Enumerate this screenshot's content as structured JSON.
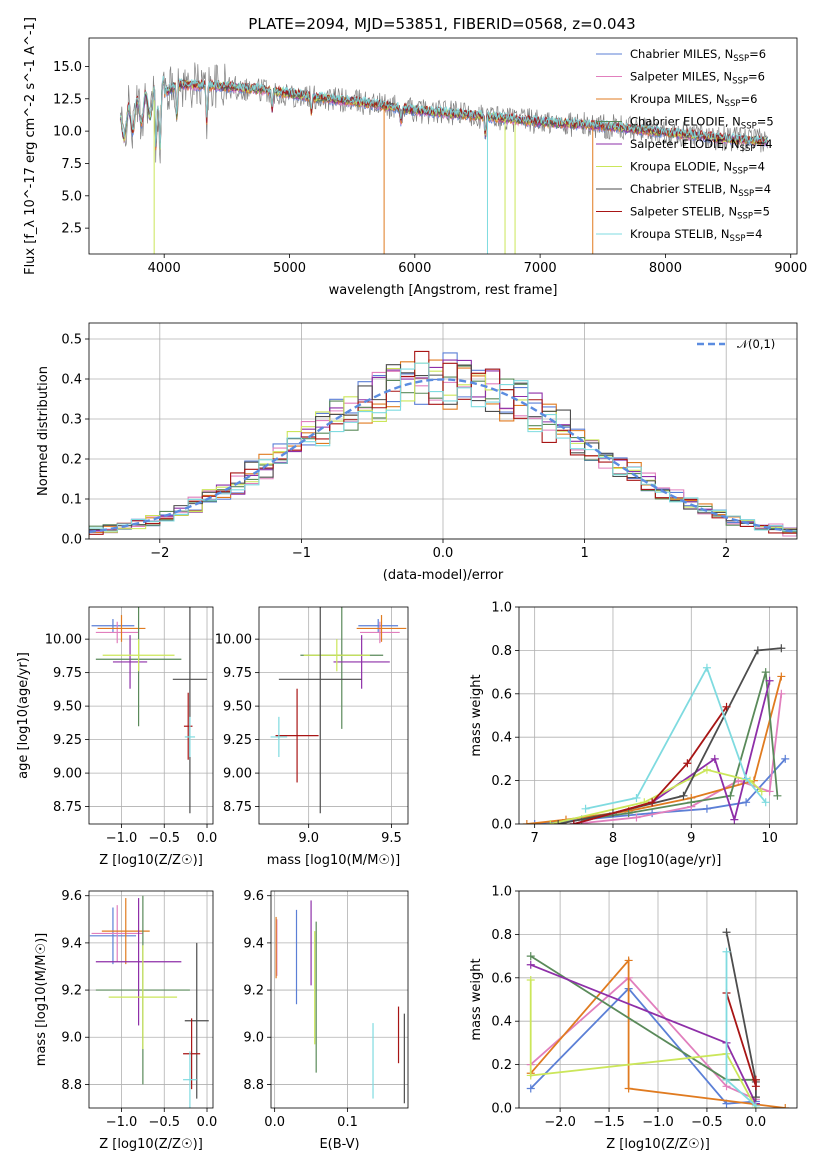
{
  "figure_title": "PLATE=2094, MJD=53851, FIBERID=0568, z=0.043",
  "colors": [
    "#5b7fd6",
    "#e17fbd",
    "#e07b20",
    "#5a8a5a",
    "#8e2fa8",
    "#cbe65a",
    "#4d4d4d",
    "#a81515",
    "#7fdbe0"
  ],
  "chart_data": [
    {
      "id": "spectrum",
      "type": "line",
      "title": "PLATE=2094, MJD=53851, FIBERID=0568, z=0.043",
      "xlabel": "wavelength [Angstrom, rest frame]",
      "ylabel": "Flux [f_λ 10^-17 erg cm^-2 s^-1 A^-1]",
      "xlim": [
        3400,
        9050
      ],
      "ylim": [
        0.5,
        17.2
      ],
      "xticks": [
        4000,
        5000,
        6000,
        7000,
        8000,
        9000
      ],
      "yticks": [
        2.5,
        5.0,
        7.5,
        10.0,
        12.5,
        15.0
      ],
      "grid": false,
      "legend_position": "top-right",
      "series": [
        {
          "name": "Chabrier MILES, N_SSP=6"
        },
        {
          "name": "Salpeter MILES, N_SSP=6"
        },
        {
          "name": "Kroupa MILES, N_SSP=6"
        },
        {
          "name": "Chabrier ELODIE, N_SSP=5"
        },
        {
          "name": "Salpeter ELODIE, N_SSP=4"
        },
        {
          "name": "Kroupa ELODIE, N_SSP=4"
        },
        {
          "name": "Chabrier STELIB, N_SSP=4"
        },
        {
          "name": "Salpeter STELIB, N_SSP=5"
        },
        {
          "name": "Kroupa STELIB, N_SSP=4"
        }
      ],
      "continuum": [
        [
          3650,
          10.2
        ],
        [
          3800,
          11.5
        ],
        [
          3950,
          12.6
        ],
        [
          4100,
          13.6
        ],
        [
          4400,
          13.5
        ],
        [
          4800,
          13.2
        ],
        [
          5200,
          12.6
        ],
        [
          5600,
          12.2
        ],
        [
          6000,
          11.6
        ],
        [
          6500,
          11.2
        ],
        [
          7000,
          10.7
        ],
        [
          7500,
          10.4
        ],
        [
          8000,
          9.9
        ],
        [
          8500,
          9.4
        ],
        [
          8800,
          9.2
        ]
      ],
      "observed_color": "#808080"
    },
    {
      "id": "residuals",
      "type": "histogram",
      "xlabel": "(data-model)/error",
      "ylabel": "Normed distribution",
      "xlim": [
        -2.5,
        2.5
      ],
      "ylim": [
        0,
        0.54
      ],
      "xticks": [
        -2,
        -1,
        0,
        1,
        2
      ],
      "yticks": [
        0.0,
        0.1,
        0.2,
        0.3,
        0.4,
        0.5
      ],
      "grid": true,
      "legend": "𝒩(0,1)",
      "legend_position": "top-right",
      "bin_width": 0.1
    },
    {
      "id": "age_vs_Z",
      "type": "errorbar",
      "xlabel": "Z [log10(Z/Z☉)]",
      "ylabel": "age  [log10(age/yr)]",
      "xlim": [
        -1.38,
        0.07
      ],
      "ylim": [
        8.62,
        10.24
      ],
      "xticks": [
        -1.0,
        -0.5,
        0.0
      ],
      "yticks": [
        8.75,
        9.0,
        9.25,
        9.5,
        9.75,
        10.0
      ],
      "grid": true,
      "points": [
        {
          "x": -1.1,
          "y": 10.1,
          "xerr": 0.25,
          "yerr": 0.05
        },
        {
          "x": -1.05,
          "y": 10.05,
          "xerr": 0.25,
          "yerr": 0.08
        },
        {
          "x": -1.0,
          "y": 10.08,
          "xerr": 0.28,
          "yerr": 0.1
        },
        {
          "x": -0.8,
          "y": 9.85,
          "xerr": 0.5,
          "yerr": 0.5
        },
        {
          "x": -0.9,
          "y": 9.83,
          "xerr": 0.2,
          "yerr": 0.2
        },
        {
          "x": -0.8,
          "y": 9.88,
          "xerr": 0.42,
          "yerr": 0.12
        },
        {
          "x": -0.2,
          "y": 9.7,
          "xerr": 0.2,
          "yerr": 1.0
        },
        {
          "x": -0.22,
          "y": 9.35,
          "xerr": 0.05,
          "yerr": 0.25
        },
        {
          "x": -0.2,
          "y": 9.27,
          "xerr": 0.06,
          "yerr": 0.15
        }
      ]
    },
    {
      "id": "age_vs_mass",
      "type": "errorbar",
      "xlabel": "mass [log10(M/M☉)]",
      "ylabel": "",
      "xlim": [
        8.7,
        9.6
      ],
      "ylim": [
        8.62,
        10.24
      ],
      "xticks": [
        9.0,
        9.5
      ],
      "yticks": [
        8.75,
        9.0,
        9.25,
        9.5,
        9.75,
        10.0
      ],
      "grid": true,
      "points": [
        {
          "x": 9.42,
          "y": 10.1,
          "xerr": 0.12,
          "yerr": 0.05
        },
        {
          "x": 9.43,
          "y": 10.05,
          "xerr": 0.12,
          "yerr": 0.08
        },
        {
          "x": 9.44,
          "y": 10.08,
          "xerr": 0.15,
          "yerr": 0.1
        },
        {
          "x": 9.2,
          "y": 9.88,
          "xerr": 0.25,
          "yerr": 0.55
        },
        {
          "x": 9.32,
          "y": 9.83,
          "xerr": 0.17,
          "yerr": 0.2
        },
        {
          "x": 9.17,
          "y": 9.88,
          "xerr": 0.2,
          "yerr": 0.12
        },
        {
          "x": 9.07,
          "y": 9.7,
          "xerr": 0.25,
          "yerr": 1.0
        },
        {
          "x": 8.93,
          "y": 9.28,
          "xerr": 0.13,
          "yerr": 0.35
        },
        {
          "x": 8.82,
          "y": 9.27,
          "xerr": 0.05,
          "yerr": 0.15
        }
      ]
    },
    {
      "id": "weight_vs_age",
      "type": "line",
      "xlabel": "age  [log10(age/yr)]",
      "ylabel": "mass weight",
      "xlim": [
        6.8,
        10.35
      ],
      "ylim": [
        0.0,
        1.0
      ],
      "xticks": [
        7,
        8,
        9,
        10
      ],
      "yticks": [
        0.0,
        0.2,
        0.4,
        0.6,
        0.8,
        1.0
      ],
      "grid": true,
      "series": [
        {
          "x": [
            7.0,
            7.6,
            8.5,
            9.2,
            9.7,
            10.2
          ],
          "y": [
            0.0,
            0.02,
            0.05,
            0.07,
            0.1,
            0.3
          ]
        },
        {
          "x": [
            7.5,
            8.3,
            9.0,
            9.6,
            10.0,
            10.15
          ],
          "y": [
            0.0,
            0.03,
            0.08,
            0.2,
            0.15,
            0.6
          ]
        },
        {
          "x": [
            6.9,
            7.4,
            8.2,
            9.0,
            9.8,
            10.15
          ],
          "y": [
            0.0,
            0.02,
            0.06,
            0.12,
            0.2,
            0.68
          ]
        },
        {
          "x": [
            7.6,
            8.2,
            9.0,
            9.5,
            9.95,
            10.1
          ],
          "y": [
            0.02,
            0.05,
            0.1,
            0.13,
            0.7,
            0.13
          ]
        },
        {
          "x": [
            7.5,
            8.5,
            9.3,
            9.55,
            10.0
          ],
          "y": [
            0.0,
            0.1,
            0.3,
            0.02,
            0.66
          ]
        },
        {
          "x": [
            7.2,
            8.4,
            9.2,
            9.75,
            9.9
          ],
          "y": [
            0.0,
            0.1,
            0.25,
            0.2,
            0.15
          ]
        },
        {
          "x": [
            7.3,
            8.0,
            8.9,
            9.85,
            10.15
          ],
          "y": [
            0.0,
            0.05,
            0.13,
            0.8,
            0.81
          ]
        },
        {
          "x": [
            7.5,
            8.5,
            8.95,
            9.45
          ],
          "y": [
            0.0,
            0.1,
            0.28,
            0.54
          ]
        },
        {
          "x": [
            7.65,
            8.3,
            9.2,
            9.7,
            9.95
          ],
          "y": [
            0.07,
            0.12,
            0.72,
            0.21,
            0.1
          ]
        }
      ]
    },
    {
      "id": "mass_vs_Z",
      "type": "errorbar",
      "xlabel": "Z [log10(Z/Z☉)]",
      "ylabel": "mass [log10(M/M☉)]",
      "xlim": [
        -1.38,
        0.07
      ],
      "ylim": [
        8.7,
        9.62
      ],
      "xticks": [
        -1.0,
        -0.5,
        0.0
      ],
      "yticks": [
        8.8,
        9.0,
        9.2,
        9.4,
        9.6
      ],
      "grid": true,
      "points": [
        {
          "x": -1.1,
          "y": 9.43,
          "xerr": 0.27,
          "yerr": 0.12
        },
        {
          "x": -1.05,
          "y": 9.44,
          "xerr": 0.3,
          "yerr": 0.12
        },
        {
          "x": -0.95,
          "y": 9.45,
          "xerr": 0.28,
          "yerr": 0.14
        },
        {
          "x": -0.75,
          "y": 9.2,
          "xerr": 0.55,
          "yerr": 0.4
        },
        {
          "x": -0.8,
          "y": 9.32,
          "xerr": 0.5,
          "yerr": 0.27
        },
        {
          "x": -0.75,
          "y": 9.17,
          "xerr": 0.4,
          "yerr": 0.22
        },
        {
          "x": -0.12,
          "y": 9.07,
          "xerr": 0.14,
          "yerr": 0.33
        },
        {
          "x": -0.18,
          "y": 8.93,
          "xerr": 0.1,
          "yerr": 0.15
        },
        {
          "x": -0.2,
          "y": 8.82,
          "xerr": 0.08,
          "yerr": 0.12
        }
      ]
    },
    {
      "id": "mass_vs_EBV",
      "type": "errorbar",
      "xlabel": "E(B-V)",
      "ylabel": "",
      "xlim": [
        -0.005,
        0.183
      ],
      "ylim": [
        8.7,
        9.62
      ],
      "xticks": [
        0.0,
        0.1
      ],
      "yticks": [
        8.8,
        9.0,
        9.2,
        9.4,
        9.6
      ],
      "grid": true,
      "points": [
        {
          "x": 0.03,
          "y": 9.34,
          "xerr": 0,
          "yerr": 0.2
        },
        {
          "x": 0.003,
          "y": 9.38,
          "xerr": 0,
          "yerr": 0.12
        },
        {
          "x": 0.002,
          "y": 9.38,
          "xerr": 0,
          "yerr": 0.13
        },
        {
          "x": 0.057,
          "y": 9.17,
          "xerr": 0,
          "yerr": 0.32
        },
        {
          "x": 0.05,
          "y": 9.4,
          "xerr": 0,
          "yerr": 0.18
        },
        {
          "x": 0.055,
          "y": 9.21,
          "xerr": 0,
          "yerr": 0.24
        },
        {
          "x": 0.178,
          "y": 8.91,
          "xerr": 0,
          "yerr": 0.19
        },
        {
          "x": 0.17,
          "y": 9.01,
          "xerr": 0,
          "yerr": 0.12
        },
        {
          "x": 0.135,
          "y": 8.9,
          "xerr": 0,
          "yerr": 0.16
        }
      ]
    },
    {
      "id": "weight_vs_Z",
      "type": "line",
      "xlabel": "Z [log10(Z/Z☉)]",
      "ylabel": "mass weight",
      "xlim": [
        -2.42,
        0.42
      ],
      "ylim": [
        0.0,
        1.0
      ],
      "xticks": [
        -2.0,
        -1.5,
        -1.0,
        -0.5,
        0.0
      ],
      "yticks": [
        0.0,
        0.2,
        0.4,
        0.6,
        0.8,
        1.0
      ],
      "grid": true,
      "series": [
        {
          "x": [
            -2.3,
            -1.3,
            -0.3,
            0.0
          ],
          "y": [
            0.09,
            0.55,
            0.02,
            0.03
          ]
        },
        {
          "x": [
            -2.3,
            -1.3,
            -0.3,
            0.0
          ],
          "y": [
            0.2,
            0.6,
            0.1,
            0.04
          ]
        },
        {
          "x": [
            -2.3,
            -1.3,
            -1.3,
            0.3
          ],
          "y": [
            0.16,
            0.68,
            0.09,
            0.0
          ]
        },
        {
          "x": [
            -2.3,
            -0.3,
            0.0
          ],
          "y": [
            0.7,
            0.13,
            0.13
          ]
        },
        {
          "x": [
            -2.3,
            -0.3,
            0.0
          ],
          "y": [
            0.66,
            0.3,
            0.02
          ]
        },
        {
          "x": [
            -2.3,
            -2.3,
            -0.3,
            0.0
          ],
          "y": [
            0.59,
            0.15,
            0.25,
            0.0
          ]
        },
        {
          "x": [
            -0.3,
            0.0,
            0.0
          ],
          "y": [
            0.81,
            0.12,
            0.05
          ]
        },
        {
          "x": [
            -0.3,
            0.0,
            0.0
          ],
          "y": [
            0.53,
            0.1,
            0.13
          ]
        },
        {
          "x": [
            -0.3,
            -0.3,
            0.0
          ],
          "y": [
            0.72,
            0.13,
            0.01
          ]
        }
      ]
    }
  ]
}
